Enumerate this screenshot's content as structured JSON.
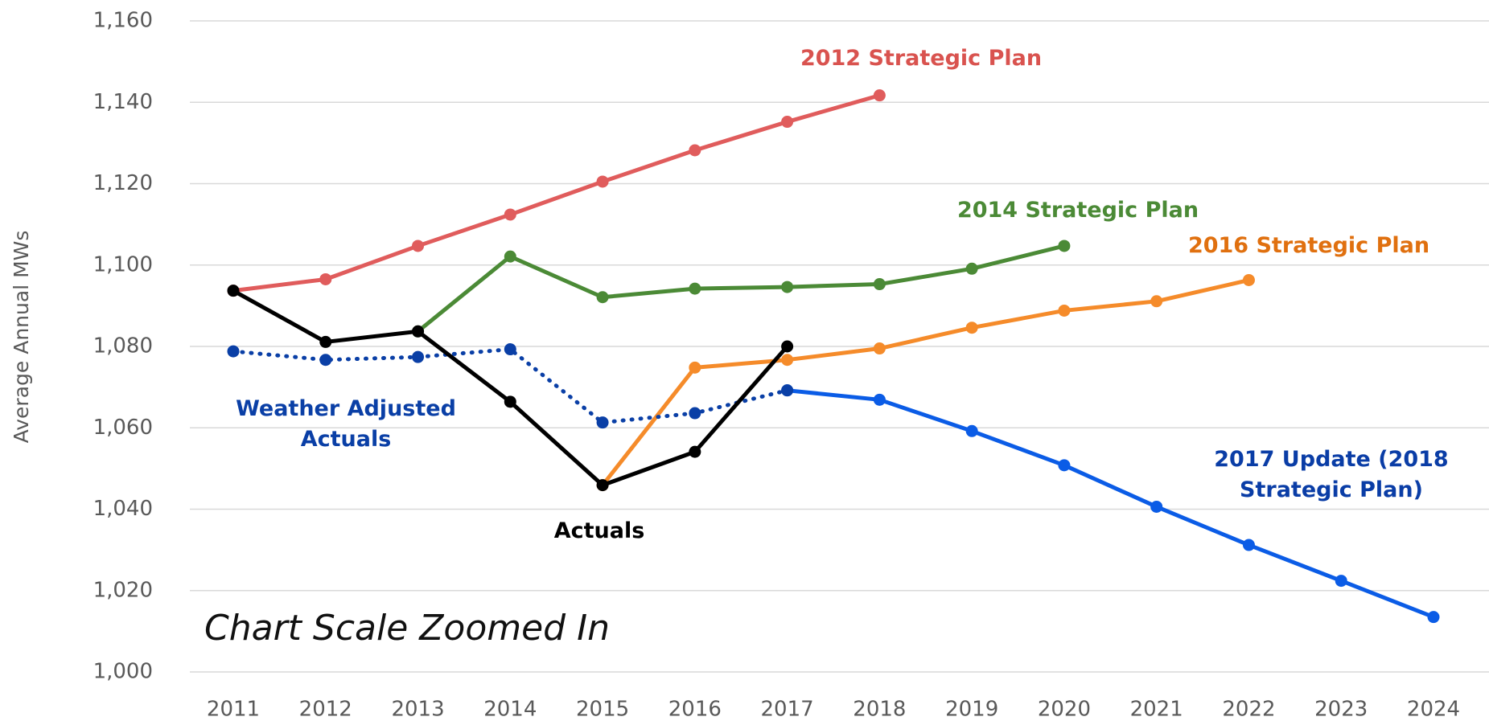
{
  "chart_data": {
    "type": "line",
    "y_label": "Average Annual MWs",
    "annotation": "Chart Scale Zoomed In",
    "x": [
      2011,
      2012,
      2013,
      2014,
      2015,
      2016,
      2017,
      2018,
      2019,
      2020,
      2021,
      2022,
      2023,
      2024
    ],
    "xlim": [
      2011,
      2024
    ],
    "xticks": [
      2011,
      2012,
      2013,
      2014,
      2015,
      2016,
      2017,
      2018,
      2019,
      2020,
      2021,
      2022,
      2023,
      2024
    ],
    "ylim": [
      1000,
      1160
    ],
    "yticks": [
      {
        "value": 1000,
        "label": "1,000"
      },
      {
        "value": 1020,
        "label": "1,020"
      },
      {
        "value": 1040,
        "label": "1,040"
      },
      {
        "value": 1060,
        "label": "1,060"
      },
      {
        "value": 1080,
        "label": "1,080"
      },
      {
        "value": 1100,
        "label": "1,100"
      },
      {
        "value": 1120,
        "label": "1,120"
      },
      {
        "value": 1140,
        "label": "1,140"
      },
      {
        "value": 1160,
        "label": "1,160"
      }
    ],
    "grid": true,
    "series": [
      {
        "name": "2012 Strategic Plan",
        "color": "#e05c5c",
        "label_color": "#d9534f",
        "values": [
          1093.7,
          1096.5,
          1104.7,
          1112.4,
          1120.5,
          1128.2,
          1135.2,
          1141.7,
          null,
          null,
          null,
          null,
          null,
          null
        ]
      },
      {
        "name": "2014 Strategic Plan",
        "color": "#4b8a36",
        "label_color": "#4b8a36",
        "values": [
          null,
          null,
          1083.7,
          1102.1,
          1092.1,
          1094.2,
          1094.6,
          1095.3,
          1099.1,
          1104.7,
          null,
          null,
          null,
          null
        ]
      },
      {
        "name": "2016 Strategic Plan",
        "color": "#f58b2a",
        "label_color": "#e0700f",
        "values": [
          null,
          null,
          null,
          null,
          1045.9,
          1074.8,
          1076.7,
          1079.5,
          1084.6,
          1088.8,
          1091.1,
          1096.3,
          null,
          null
        ]
      },
      {
        "name": "2017 Update (2018 Strategic Plan)",
        "color": "#0b5ce6",
        "label_color": "#0a3da6",
        "values": [
          null,
          null,
          null,
          null,
          null,
          null,
          1069.2,
          1066.9,
          1059.2,
          1050.8,
          1040.6,
          1031.2,
          1022.4,
          1013.5
        ]
      },
      {
        "name": "Weather Adjusted Actuals",
        "color": "#0a3fa6",
        "label_color": "#0a3fa6",
        "dash": "dotted",
        "values": [
          1078.8,
          1076.7,
          1077.4,
          1079.3,
          1061.3,
          1063.6,
          1069.2,
          null,
          null,
          null,
          null,
          null,
          null,
          null
        ]
      },
      {
        "name": "Actuals",
        "color": "#000000",
        "label_color": "#000000",
        "values": [
          1093.7,
          1081.1,
          1083.7,
          1066.4,
          1045.9,
          1054.1,
          1080.0,
          null,
          null,
          null,
          null,
          null,
          null,
          null
        ]
      }
    ]
  }
}
